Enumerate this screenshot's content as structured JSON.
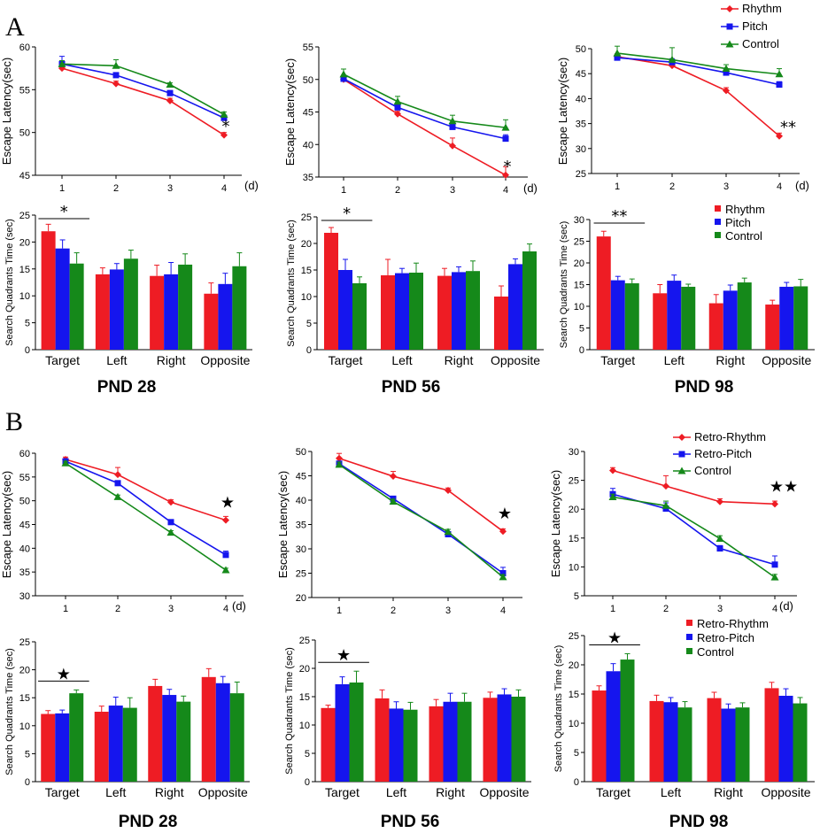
{
  "figure": {
    "panel_letters": [
      "A",
      "B"
    ]
  },
  "colors": {
    "red": "#ee1c24",
    "blue": "#1515ee",
    "green": "#15891a"
  },
  "chart_data": [
    {
      "id": "A-line-28",
      "type": "line",
      "marker": [
        "diamond",
        "square",
        "triangle"
      ],
      "ylabel": "Escape Latency(sec)",
      "xunit": "(d)",
      "x": [
        1,
        2,
        3,
        4
      ],
      "ylim": [
        45,
        60
      ],
      "yticks": [
        45,
        50,
        55,
        60
      ],
      "series": [
        {
          "name": "Rhythm",
          "color": "#ee1c24",
          "values": [
            57.5,
            55.7,
            53.7,
            49.7
          ],
          "err": [
            0.3,
            0.3,
            0.3,
            0.3
          ]
        },
        {
          "name": "Pitch",
          "color": "#1515ee",
          "values": [
            58.0,
            56.7,
            54.6,
            51.7
          ],
          "err": [
            0.9,
            0.3,
            0.3,
            0.3
          ]
        },
        {
          "name": "Control",
          "color": "#15891a",
          "values": [
            58.0,
            57.8,
            55.6,
            52.1
          ],
          "err": [
            0.4,
            0.7,
            0.2,
            0.3
          ]
        }
      ],
      "annotations": [
        {
          "text": "*",
          "x": 4
        }
      ]
    },
    {
      "id": "A-line-56",
      "type": "line",
      "marker": [
        "diamond",
        "square",
        "triangle"
      ],
      "ylabel": "Escape Latency(sec)",
      "xunit": "(d)",
      "x": [
        1,
        2,
        3,
        4
      ],
      "ylim": [
        35,
        55
      ],
      "yticks": [
        35,
        40,
        45,
        50,
        55
      ],
      "series": [
        {
          "name": "Rhythm",
          "color": "#ee1c24",
          "values": [
            50.0,
            44.7,
            39.8,
            35.3
          ],
          "err": [
            0.4,
            0.4,
            1.2,
            1.3
          ]
        },
        {
          "name": "Pitch",
          "color": "#1515ee",
          "values": [
            50.1,
            45.7,
            42.7,
            40.9
          ],
          "err": [
            0.4,
            0.4,
            0.6,
            0.6
          ]
        },
        {
          "name": "Control",
          "color": "#15891a",
          "values": [
            50.8,
            46.6,
            43.6,
            42.6
          ],
          "err": [
            0.8,
            0.8,
            0.9,
            1.2
          ]
        }
      ],
      "annotations": [
        {
          "text": "*",
          "x": 4
        }
      ]
    },
    {
      "id": "A-line-98",
      "type": "line",
      "marker": [
        "diamond",
        "square",
        "triangle"
      ],
      "ylabel": "Escape Latency(sec)",
      "xunit": "(d)",
      "x": [
        1,
        2,
        3,
        4
      ],
      "ylim": [
        25,
        50
      ],
      "yticks": [
        25,
        30,
        35,
        40,
        45,
        50
      ],
      "series": [
        {
          "name": "Rhythm",
          "color": "#ee1c24",
          "values": [
            48.4,
            46.6,
            41.6,
            32.5
          ],
          "err": [
            0.6,
            0.6,
            0.6,
            0.6
          ]
        },
        {
          "name": "Pitch",
          "color": "#1515ee",
          "values": [
            48.2,
            47.3,
            45.2,
            42.8
          ],
          "err": [
            0.7,
            0.7,
            0.7,
            0.6
          ]
        },
        {
          "name": "Control",
          "color": "#15891a",
          "values": [
            49.1,
            47.8,
            46.0,
            44.9
          ],
          "err": [
            1.4,
            2.4,
            0.8,
            1.1
          ]
        }
      ],
      "annotations": [
        {
          "text": "**",
          "x": 4
        }
      ],
      "legend": [
        "Rhythm",
        "Pitch",
        "Control"
      ]
    },
    {
      "id": "A-bar-28",
      "type": "bar",
      "ylabel": "Search Quadrants Time (sec)",
      "categories": [
        "Target",
        "Left",
        "Right",
        "Opposite"
      ],
      "ylim": [
        0,
        25
      ],
      "yticks": [
        0,
        5,
        10,
        15,
        20,
        25
      ],
      "series": [
        {
          "name": "Rhythm",
          "color": "#ee1c24",
          "values": [
            22.0,
            14.0,
            13.7,
            10.4
          ],
          "err": [
            1.3,
            1.2,
            2.0,
            2.0
          ]
        },
        {
          "name": "Pitch",
          "color": "#1515ee",
          "values": [
            18.8,
            14.9,
            14.0,
            12.2
          ],
          "err": [
            1.6,
            1.1,
            2.2,
            2.0
          ]
        },
        {
          "name": "Control",
          "color": "#15891a",
          "values": [
            16.0,
            16.9,
            15.8,
            15.5
          ],
          "err": [
            2.0,
            1.6,
            2.0,
            2.5
          ]
        }
      ],
      "significance": {
        "text": "*",
        "category": "Target"
      },
      "caption": "PND 28"
    },
    {
      "id": "A-bar-56",
      "type": "bar",
      "ylabel": "Search Quadrants Time (sec)",
      "categories": [
        "Target",
        "Left",
        "Right",
        "Opposite"
      ],
      "ylim": [
        0,
        25
      ],
      "yticks": [
        0,
        5,
        10,
        15,
        20,
        25
      ],
      "series": [
        {
          "name": "Rhythm",
          "color": "#ee1c24",
          "values": [
            22.0,
            14.0,
            13.9,
            10.0
          ],
          "err": [
            1.0,
            3.0,
            1.4,
            2.0
          ]
        },
        {
          "name": "Pitch",
          "color": "#1515ee",
          "values": [
            15.0,
            14.4,
            14.6,
            16.1
          ],
          "err": [
            2.0,
            0.9,
            1.0,
            1.0
          ]
        },
        {
          "name": "Control",
          "color": "#15891a",
          "values": [
            12.5,
            14.5,
            14.8,
            18.5
          ],
          "err": [
            1.2,
            1.8,
            1.9,
            1.4
          ]
        }
      ],
      "significance": {
        "text": "*",
        "category": "Target"
      },
      "caption": "PND 56"
    },
    {
      "id": "A-bar-98",
      "type": "bar",
      "ylabel": "Search Quadrants Time (sec)",
      "categories": [
        "Target",
        "Left",
        "Right",
        "Opposite"
      ],
      "ylim": [
        0,
        30
      ],
      "yticks": [
        0,
        5,
        10,
        15,
        20,
        25,
        30
      ],
      "series": [
        {
          "name": "Rhythm",
          "color": "#ee1c24",
          "values": [
            26.1,
            13.0,
            10.7,
            10.4
          ],
          "err": [
            1.2,
            2.0,
            2.0,
            1.0
          ]
        },
        {
          "name": "Pitch",
          "color": "#1515ee",
          "values": [
            16.0,
            15.9,
            13.6,
            14.5
          ],
          "err": [
            0.9,
            1.3,
            1.3,
            1.0
          ]
        },
        {
          "name": "Control",
          "color": "#15891a",
          "values": [
            15.3,
            14.5,
            15.5,
            14.6
          ],
          "err": [
            1.0,
            0.6,
            1.0,
            1.6
          ]
        }
      ],
      "significance": {
        "text": "**",
        "category": "Target"
      },
      "legend": [
        "Rhythm",
        "Pitch",
        "Control"
      ],
      "caption": "PND 98"
    },
    {
      "id": "B-line-28",
      "type": "line",
      "marker": [
        "diamond",
        "square",
        "triangle"
      ],
      "ylabel": "Escape Latency(sec)",
      "xunit": "(d)",
      "x": [
        1,
        2,
        3,
        4
      ],
      "ylim": [
        30,
        60
      ],
      "yticks": [
        30,
        35,
        40,
        45,
        50,
        55,
        60
      ],
      "series": [
        {
          "name": "Retro-Rhythm",
          "color": "#ee1c24",
          "values": [
            58.7,
            55.5,
            49.7,
            45.9
          ],
          "err": [
            0.5,
            1.5,
            0.5,
            0.8
          ]
        },
        {
          "name": "Retro-Pitch",
          "color": "#1515ee",
          "values": [
            58.3,
            53.7,
            45.5,
            38.6
          ],
          "err": [
            0.5,
            0.5,
            0.5,
            0.8
          ]
        },
        {
          "name": "Control",
          "color": "#15891a",
          "values": [
            57.9,
            50.8,
            43.3,
            35.4
          ],
          "err": [
            0.4,
            0.4,
            0.4,
            0.4
          ]
        }
      ],
      "annotations": [
        {
          "text": "★",
          "x": 4
        }
      ]
    },
    {
      "id": "B-line-56",
      "type": "line",
      "marker": [
        "diamond",
        "square",
        "triangle"
      ],
      "ylabel": "Escape Latency(sec)",
      "xunit": "",
      "x": [
        1,
        2,
        3,
        4
      ],
      "ylim": [
        20,
        50
      ],
      "yticks": [
        20,
        25,
        30,
        35,
        40,
        45,
        50
      ],
      "series": [
        {
          "name": "Retro-Rhythm",
          "color": "#ee1c24",
          "values": [
            48.6,
            44.9,
            42.0,
            33.6
          ],
          "err": [
            1.0,
            1.0,
            0.5,
            0.5
          ]
        },
        {
          "name": "Retro-Pitch",
          "color": "#1515ee",
          "values": [
            47.5,
            40.3,
            33.0,
            25.0
          ],
          "err": [
            0.5,
            0.5,
            0.5,
            1.2
          ]
        },
        {
          "name": "Control",
          "color": "#15891a",
          "values": [
            47.3,
            39.7,
            33.5,
            24.2
          ],
          "err": [
            0.5,
            0.5,
            0.5,
            0.5
          ]
        }
      ],
      "annotations": [
        {
          "text": "★",
          "x": 4
        }
      ]
    },
    {
      "id": "B-line-98",
      "type": "line",
      "marker": [
        "diamond",
        "square",
        "triangle"
      ],
      "ylabel": "Escape Latency(sec)",
      "xunit": "(d)",
      "x": [
        1,
        2,
        3,
        4
      ],
      "ylim": [
        5,
        30
      ],
      "yticks": [
        5,
        10,
        15,
        20,
        25,
        30
      ],
      "series": [
        {
          "name": "Retro-Rhythm",
          "color": "#ee1c24",
          "values": [
            26.7,
            24.0,
            21.3,
            20.9
          ],
          "err": [
            0.5,
            1.8,
            0.5,
            0.5
          ]
        },
        {
          "name": "Retro-Pitch",
          "color": "#1515ee",
          "values": [
            22.6,
            20.1,
            13.2,
            10.4
          ],
          "err": [
            1.0,
            1.0,
            0.5,
            1.5
          ]
        },
        {
          "name": "Control",
          "color": "#15891a",
          "values": [
            22.1,
            20.6,
            14.9,
            8.2
          ],
          "err": [
            0.5,
            0.8,
            0.5,
            0.5
          ]
        }
      ],
      "annotations": [
        {
          "text": "★★",
          "x": 4
        }
      ],
      "legend": [
        "Retro-Rhythm",
        "Retro-Pitch",
        "Control"
      ]
    },
    {
      "id": "B-bar-28",
      "type": "bar",
      "ylabel": "Search Quadrants Time (sec)",
      "categories": [
        "Target",
        "Left",
        "Right",
        "Opposite"
      ],
      "ylim": [
        0,
        25
      ],
      "yticks": [
        0,
        5,
        10,
        15,
        20,
        25
      ],
      "series": [
        {
          "name": "Retro-Rhythm",
          "color": "#ee1c24",
          "values": [
            12.1,
            12.5,
            17.1,
            18.7
          ],
          "err": [
            0.6,
            1.0,
            1.2,
            1.5
          ]
        },
        {
          "name": "Retro-Pitch",
          "color": "#1515ee",
          "values": [
            12.2,
            13.6,
            15.5,
            17.6
          ],
          "err": [
            0.6,
            1.5,
            1.0,
            1.2
          ]
        },
        {
          "name": "Control",
          "color": "#15891a",
          "values": [
            15.8,
            13.2,
            14.3,
            15.8
          ],
          "err": [
            0.6,
            1.8,
            1.0,
            2.0
          ]
        }
      ],
      "significance": {
        "text": "★",
        "category": "Target"
      },
      "caption": "PND 28"
    },
    {
      "id": "B-bar-56",
      "type": "bar",
      "ylabel": "Search Quadrants Time (sec)",
      "categories": [
        "Target",
        "Left",
        "Right",
        "Opposite"
      ],
      "ylim": [
        0,
        25
      ],
      "yticks": [
        0,
        5,
        10,
        15,
        20,
        25
      ],
      "series": [
        {
          "name": "Retro-Rhythm",
          "color": "#ee1c24",
          "values": [
            13.0,
            14.7,
            13.3,
            14.8
          ],
          "err": [
            0.5,
            1.5,
            1.2,
            1.0
          ]
        },
        {
          "name": "Retro-Pitch",
          "color": "#1515ee",
          "values": [
            17.2,
            12.9,
            14.1,
            15.4
          ],
          "err": [
            1.3,
            1.2,
            1.5,
            1.0
          ]
        },
        {
          "name": "Control",
          "color": "#15891a",
          "values": [
            17.5,
            12.7,
            14.1,
            15.0
          ],
          "err": [
            2.0,
            1.3,
            1.5,
            1.2
          ]
        }
      ],
      "significance": {
        "text": "★",
        "category": "Target"
      },
      "caption": "PND 56"
    },
    {
      "id": "B-bar-98",
      "type": "bar",
      "ylabel": "Search Quadrants Time (sec)",
      "categories": [
        "Target",
        "Left",
        "Right",
        "Opposite"
      ],
      "ylim": [
        0,
        25
      ],
      "yticks": [
        0,
        5,
        10,
        15,
        20,
        25
      ],
      "series": [
        {
          "name": "Retro-Rhythm",
          "color": "#ee1c24",
          "values": [
            15.6,
            13.8,
            14.3,
            16.0
          ],
          "err": [
            0.8,
            1.0,
            1.0,
            1.0
          ]
        },
        {
          "name": "Retro-Pitch",
          "color": "#1515ee",
          "values": [
            18.9,
            13.6,
            12.5,
            14.7
          ],
          "err": [
            1.3,
            0.8,
            0.8,
            1.2
          ]
        },
        {
          "name": "Control",
          "color": "#15891a",
          "values": [
            20.9,
            12.7,
            12.7,
            13.4
          ],
          "err": [
            1.0,
            1.0,
            0.8,
            1.0
          ]
        }
      ],
      "significance": {
        "text": "★",
        "category": "Target"
      },
      "legend": [
        "Retro-Rhythm",
        "Retro-Pitch",
        "Control"
      ],
      "caption": "PND 98"
    }
  ]
}
